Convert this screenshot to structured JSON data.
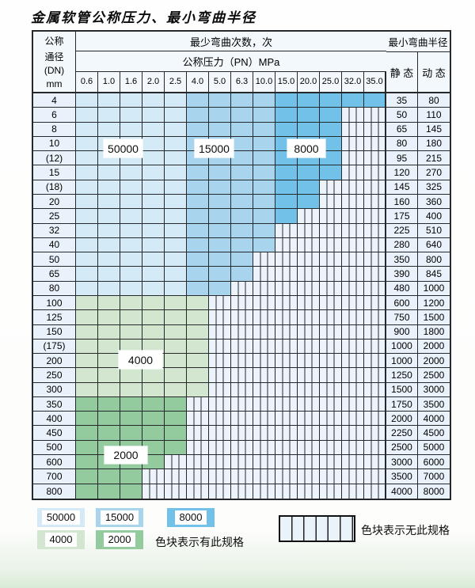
{
  "title": "金属软管公称压力、最小弯曲半径",
  "colors": {
    "c50000": "#d5eaf7",
    "c15000": "#a8d4ee",
    "c8000": "#72c1e8",
    "c4000": "#d2e6d0",
    "c2000": "#93cb9f",
    "striped_bg": "#ecf3fb",
    "side_col_bg": "#e9f2fa",
    "grid": "#26292c"
  },
  "table": {
    "dn_header": [
      "公称",
      "通径",
      "(DN)",
      "mm"
    ],
    "bend_count_header": "最少弯曲次数，次",
    "pressure_header": "公称压力（PN）MPa",
    "pressures": [
      "0.6",
      "1.0",
      "1.6",
      "2.0",
      "2.5",
      "4.0",
      "5.0",
      "6.3",
      "10.0",
      "15.0",
      "20.0",
      "25.0",
      "32.0",
      "35.0"
    ],
    "radius_header": "最小弯曲半径",
    "static_header": "静 态",
    "dynamic_header": "动 态",
    "rows": [
      {
        "dn": "4",
        "zone": "blue",
        "max": 13,
        "static": "35",
        "dynamic": "80"
      },
      {
        "dn": "6",
        "zone": "blue",
        "max": 11,
        "static": "50",
        "dynamic": "110"
      },
      {
        "dn": "8",
        "zone": "blue",
        "max": 11,
        "static": "65",
        "dynamic": "145"
      },
      {
        "dn": "10",
        "zone": "blue",
        "max": 11,
        "static": "80",
        "dynamic": "180"
      },
      {
        "dn": "(12)",
        "zone": "blue",
        "max": 11,
        "static": "95",
        "dynamic": "215"
      },
      {
        "dn": "15",
        "zone": "blue",
        "max": 11,
        "static": "120",
        "dynamic": "270"
      },
      {
        "dn": "(18)",
        "zone": "blue",
        "max": 10,
        "static": "145",
        "dynamic": "325"
      },
      {
        "dn": "20",
        "zone": "blue",
        "max": 10,
        "static": "160",
        "dynamic": "360"
      },
      {
        "dn": "25",
        "zone": "blue",
        "max": 9,
        "static": "175",
        "dynamic": "400"
      },
      {
        "dn": "32",
        "zone": "blue",
        "max": 8,
        "static": "225",
        "dynamic": "510"
      },
      {
        "dn": "40",
        "zone": "blue",
        "max": 8,
        "static": "280",
        "dynamic": "640"
      },
      {
        "dn": "50",
        "zone": "blue",
        "max": 7,
        "static": "350",
        "dynamic": "800"
      },
      {
        "dn": "65",
        "zone": "blue",
        "max": 7,
        "static": "390",
        "dynamic": "845"
      },
      {
        "dn": "80",
        "zone": "blue",
        "max": 6,
        "static": "480",
        "dynamic": "1000"
      },
      {
        "dn": "100",
        "zone": "g4000",
        "max": 5,
        "static": "600",
        "dynamic": "1200"
      },
      {
        "dn": "125",
        "zone": "g4000",
        "max": 5,
        "static": "750",
        "dynamic": "1500"
      },
      {
        "dn": "150",
        "zone": "g4000",
        "max": 5,
        "static": "900",
        "dynamic": "1800"
      },
      {
        "dn": "(175)",
        "zone": "g4000",
        "max": 5,
        "static": "1000",
        "dynamic": "2000"
      },
      {
        "dn": "200",
        "zone": "g4000",
        "max": 5,
        "static": "1000",
        "dynamic": "2000"
      },
      {
        "dn": "250",
        "zone": "g4000",
        "max": 5,
        "static": "1250",
        "dynamic": "2500"
      },
      {
        "dn": "300",
        "zone": "g4000",
        "max": 5,
        "static": "1500",
        "dynamic": "3000"
      },
      {
        "dn": "350",
        "zone": "g2000",
        "max": 4,
        "static": "1750",
        "dynamic": "3500"
      },
      {
        "dn": "400",
        "zone": "g2000",
        "max": 4,
        "static": "2000",
        "dynamic": "4000"
      },
      {
        "dn": "450",
        "zone": "g2000",
        "max": 4,
        "static": "2250",
        "dynamic": "4500"
      },
      {
        "dn": "500",
        "zone": "g2000",
        "max": 4,
        "static": "2500",
        "dynamic": "5000"
      },
      {
        "dn": "600",
        "zone": "g2000",
        "max": 3,
        "static": "3000",
        "dynamic": "6000"
      },
      {
        "dn": "700",
        "zone": "g2000",
        "max": 2,
        "static": "3500",
        "dynamic": "7000"
      },
      {
        "dn": "800",
        "zone": "g2000",
        "max": 2,
        "static": "4000",
        "dynamic": "8000"
      }
    ]
  },
  "zone_labels": [
    {
      "text": "50000"
    },
    {
      "text": "15000"
    },
    {
      "text": "8000"
    },
    {
      "text": "4000"
    },
    {
      "text": "2000"
    }
  ],
  "legend": {
    "available_items": [
      {
        "label": "50000",
        "color": "#d5eaf7"
      },
      {
        "label": "15000",
        "color": "#a8d4ee"
      },
      {
        "label": "8000",
        "color": "#72c1e8"
      },
      {
        "label": "4000",
        "color": "#d2e6d0"
      },
      {
        "label": "2000",
        "color": "#93cb9f"
      }
    ],
    "available_note": "色块表示有此规格",
    "unavailable_note": "色块表示无此规格"
  }
}
